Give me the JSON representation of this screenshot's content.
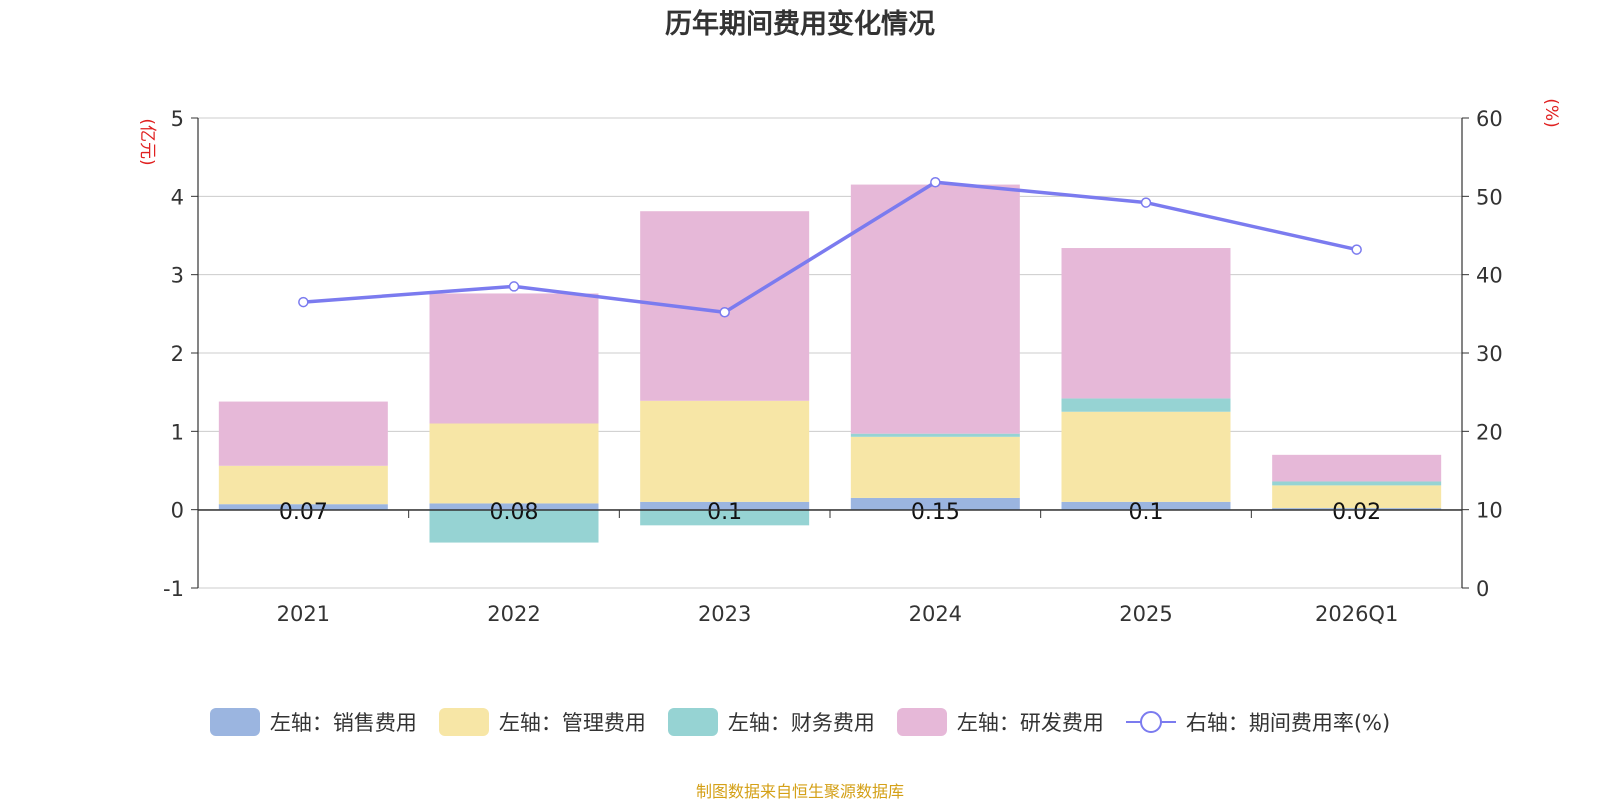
{
  "chart_data": {
    "type": "bar",
    "subtype": "stacked-bar-with-line",
    "title": "历年期间费用变化情况",
    "categories": [
      "2021",
      "2022",
      "2023",
      "2024",
      "2025",
      "2026Q1"
    ],
    "left_axis": {
      "unit": "(亿元)",
      "ylim": [
        -1,
        5
      ],
      "ticks": [
        "-1",
        "0",
        "1",
        "2",
        "3",
        "4",
        "5"
      ]
    },
    "right_axis": {
      "unit": "(%)",
      "ylim": [
        0,
        60
      ],
      "ticks": [
        "0",
        "10",
        "20",
        "30",
        "40",
        "50",
        "60"
      ]
    },
    "series": [
      {
        "name": "左轴：销售费用",
        "axis": "left",
        "type": "bar",
        "color": "#9bb5e0",
        "values": [
          0.07,
          0.08,
          0.1,
          0.15,
          0.1,
          0.02
        ],
        "labels": [
          "0.07",
          "0.08",
          "0.1",
          "0.15",
          "0.1",
          "0.02"
        ]
      },
      {
        "name": "左轴：管理费用",
        "axis": "left",
        "type": "bar",
        "color": "#f7e6a6",
        "values": [
          0.49,
          1.02,
          1.29,
          0.78,
          1.15,
          0.29
        ]
      },
      {
        "name": "左轴：财务费用",
        "axis": "left",
        "type": "bar",
        "color": "#96d3d3",
        "values": [
          0.0,
          -0.42,
          -0.2,
          0.04,
          0.17,
          0.05
        ]
      },
      {
        "name": "左轴：研发费用",
        "axis": "left",
        "type": "bar",
        "color": "#e6b8d8",
        "values": [
          0.82,
          1.66,
          2.42,
          3.18,
          1.92,
          0.34
        ]
      },
      {
        "name": "右轴：期间费用率(%)",
        "axis": "right",
        "type": "line",
        "color": "#7b7bef",
        "values": [
          36.5,
          38.5,
          35.2,
          51.8,
          49.2,
          43.2
        ]
      }
    ],
    "grid": true,
    "legend_position": "bottom"
  },
  "colors": {
    "title": "#333333",
    "axis_unit": "#e02020",
    "source": "#d4a017",
    "grid": "#cccccc",
    "axis_line": "#333333"
  },
  "source_text": "制图数据来自恒生聚源数据库"
}
